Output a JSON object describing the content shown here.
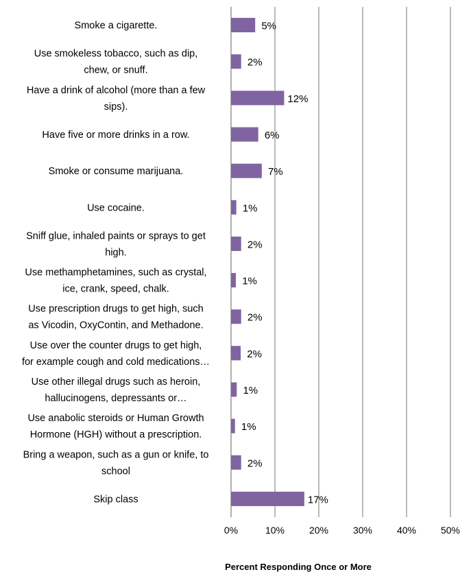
{
  "chart_data": {
    "type": "bar",
    "orientation": "horizontal",
    "title": "",
    "xlabel": "Percent Responding Once or More",
    "ylabel": "",
    "xlim": [
      0,
      50
    ],
    "grid": true,
    "legend": "none",
    "bar_color": "#8064a2",
    "categories": [
      "Smoke a cigarette.",
      "Use smokeless tobacco, such as dip, chew, or snuff.",
      "Have a drink of alcohol (more than a few sips).",
      "Have five or more drinks in a row.",
      "Smoke or consume marijuana.",
      "Use cocaine.",
      "Sniff glue, inhaled paints or sprays to get high.",
      "Use methamphetamines, such as crystal, ice, crank, speed, chalk.",
      "Use prescription drugs to get high, such as Vicodin, OxyContin, and Methadone.",
      "Use over the counter drugs to get high, for example cough and cold medications…",
      "Use other illegal drugs such as heroin, hallucinogens, depressants or…",
      "Use anabolic steroids or Human Growth Hormone (HGH) without a prescription.",
      "Bring a weapon, such as a gun or knife, to school",
      "Skip class"
    ],
    "category_lines": [
      [
        "Smoke a cigarette."
      ],
      [
        "Use smokeless tobacco, such as dip,",
        "chew, or snuff."
      ],
      [
        "Have a drink of alcohol (more than a few",
        "sips)."
      ],
      [
        "Have five or more drinks in a row."
      ],
      [
        "Smoke or consume marijuana."
      ],
      [
        "Use cocaine."
      ],
      [
        "Sniff glue, inhaled paints or sprays to get",
        "high."
      ],
      [
        "Use methamphetamines, such as crystal,",
        "ice, crank, speed, chalk."
      ],
      [
        "Use prescription drugs to get high, such",
        "as Vicodin, OxyContin, and Methadone."
      ],
      [
        "Use over the counter drugs to get high,",
        "for example cough and cold medications…"
      ],
      [
        "Use other illegal drugs such as heroin,",
        "hallucinogens, depressants or…"
      ],
      [
        "Use anabolic steroids or Human Growth",
        "Hormone (HGH) without a prescription."
      ],
      [
        "Bring a weapon, such as a gun or knife, to",
        "school"
      ],
      [
        "Skip class"
      ]
    ],
    "values": [
      5.5,
      2.3,
      12.1,
      6.2,
      7.0,
      1.2,
      2.3,
      1.1,
      2.3,
      2.2,
      1.3,
      0.9,
      2.3,
      16.7
    ],
    "value_labels": [
      "5%",
      "2%",
      "12%",
      "6%",
      "7%",
      "1%",
      "2%",
      "1%",
      "2%",
      "2%",
      "1%",
      "1%",
      "2%",
      "17%"
    ],
    "x_ticks": [
      0,
      10,
      20,
      30,
      40,
      50
    ],
    "x_tick_labels": [
      "0%",
      "10%",
      "20%",
      "30%",
      "40%",
      "50%"
    ]
  }
}
